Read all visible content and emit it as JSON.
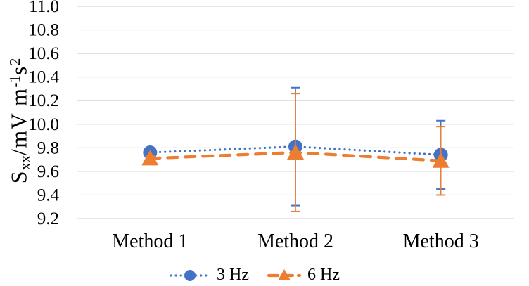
{
  "colors": {
    "background": "#FFFFFF",
    "grid": "#D9D9D9",
    "text": "#000000",
    "series_blue": "#4472C4",
    "series_orange": "#ED7D31"
  },
  "chart_data": {
    "type": "line",
    "categories": [
      "Method 1",
      "Method 2",
      "Method 3"
    ],
    "series": [
      {
        "name": "3 Hz",
        "color": "#4472C4",
        "marker": "circle",
        "line_style": "dotted",
        "values": [
          9.76,
          9.81,
          9.74
        ],
        "error_bars": [
          0.02,
          0.5,
          0.29
        ]
      },
      {
        "name": "6 Hz",
        "color": "#ED7D31",
        "marker": "triangle",
        "line_style": "dashed",
        "values": [
          9.71,
          9.76,
          9.69
        ],
        "error_bars": [
          0.02,
          0.5,
          0.29
        ]
      }
    ],
    "ylabel": "Sxx/mV m-1s2",
    "ylabel_parts": [
      {
        "text": "S",
        "style": "normal"
      },
      {
        "text": "xx",
        "style": "sub"
      },
      {
        "text": "/mV m",
        "style": "normal"
      },
      {
        "text": "-1",
        "style": "sup"
      },
      {
        "text": "s",
        "style": "normal"
      },
      {
        "text": "2",
        "style": "sup"
      }
    ],
    "ylim": [
      9.2,
      11.0
    ],
    "ytick_step": 0.2,
    "yticks": [
      "11.0",
      "10.8",
      "10.6",
      "10.4",
      "10.2",
      "10.0",
      "9.8",
      "9.6",
      "9.4",
      "9.2"
    ],
    "xlabel": "",
    "grid": true,
    "legend_position": "bottom"
  }
}
